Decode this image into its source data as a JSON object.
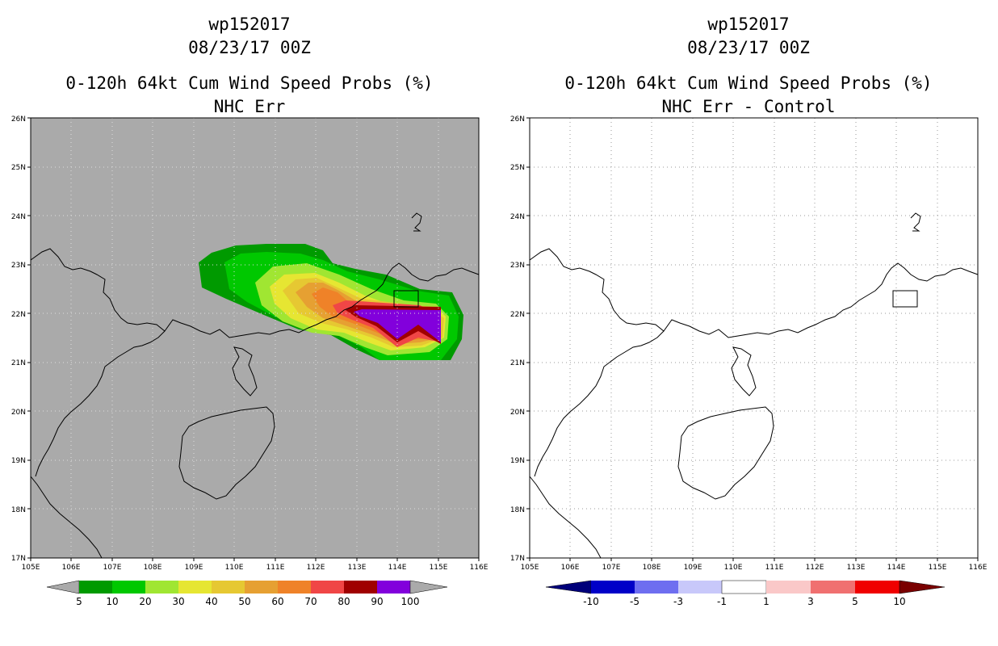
{
  "panels": [
    {
      "id": "nhc-err",
      "title_line1": "wp152017",
      "title_line2": "08/23/17 00Z",
      "title_line3": "0-120h 64kt Cum Wind Speed Probs (%)",
      "title_line4": "NHC Err",
      "background": "#aaaaaa",
      "lon_labels": [
        "105E",
        "106E",
        "107E",
        "108E",
        "109E",
        "110E",
        "111E",
        "112E",
        "113E",
        "114E",
        "115E",
        "116E"
      ],
      "lat_labels": [
        "17N",
        "18N",
        "19N",
        "20N",
        "21N",
        "22N",
        "23N",
        "24N",
        "25N",
        "26N"
      ],
      "colorbar": {
        "labels": [
          "5",
          "10",
          "20",
          "30",
          "40",
          "50",
          "60",
          "70",
          "80",
          "90",
          "100"
        ],
        "colors": [
          "#009a00",
          "#00c800",
          "#a0e632",
          "#e6e632",
          "#e6c832",
          "#e6a032",
          "#ef8228",
          "#f04646",
          "#a00000",
          "#8200dc"
        ],
        "end_color": "#aaaaaa"
      }
    },
    {
      "id": "nhc-err-control",
      "title_line1": "wp152017",
      "title_line2": "08/23/17 00Z",
      "title_line3": "0-120h 64kt Cum Wind Speed Probs (%)",
      "title_line4": "NHC Err - Control",
      "background": "#ffffff",
      "lon_labels": [
        "105E",
        "106E",
        "107E",
        "108E",
        "109E",
        "110E",
        "111E",
        "112E",
        "113E",
        "114E",
        "115E",
        "116E"
      ],
      "lat_labels": [
        "17N",
        "18N",
        "19N",
        "20N",
        "21N",
        "22N",
        "23N",
        "24N",
        "25N",
        "26N"
      ],
      "colorbar": {
        "labels": [
          "-10",
          "-5",
          "-3",
          "-1",
          "1",
          "3",
          "5",
          "10"
        ],
        "colors": [
          "#0000c8",
          "#6e6ef0",
          "#c8c8fa",
          "#ffffff",
          "#fac8c8",
          "#f07070",
          "#f00000"
        ],
        "end_left_color": "#00007a",
        "end_right_color": "#7a0000"
      }
    }
  ]
}
